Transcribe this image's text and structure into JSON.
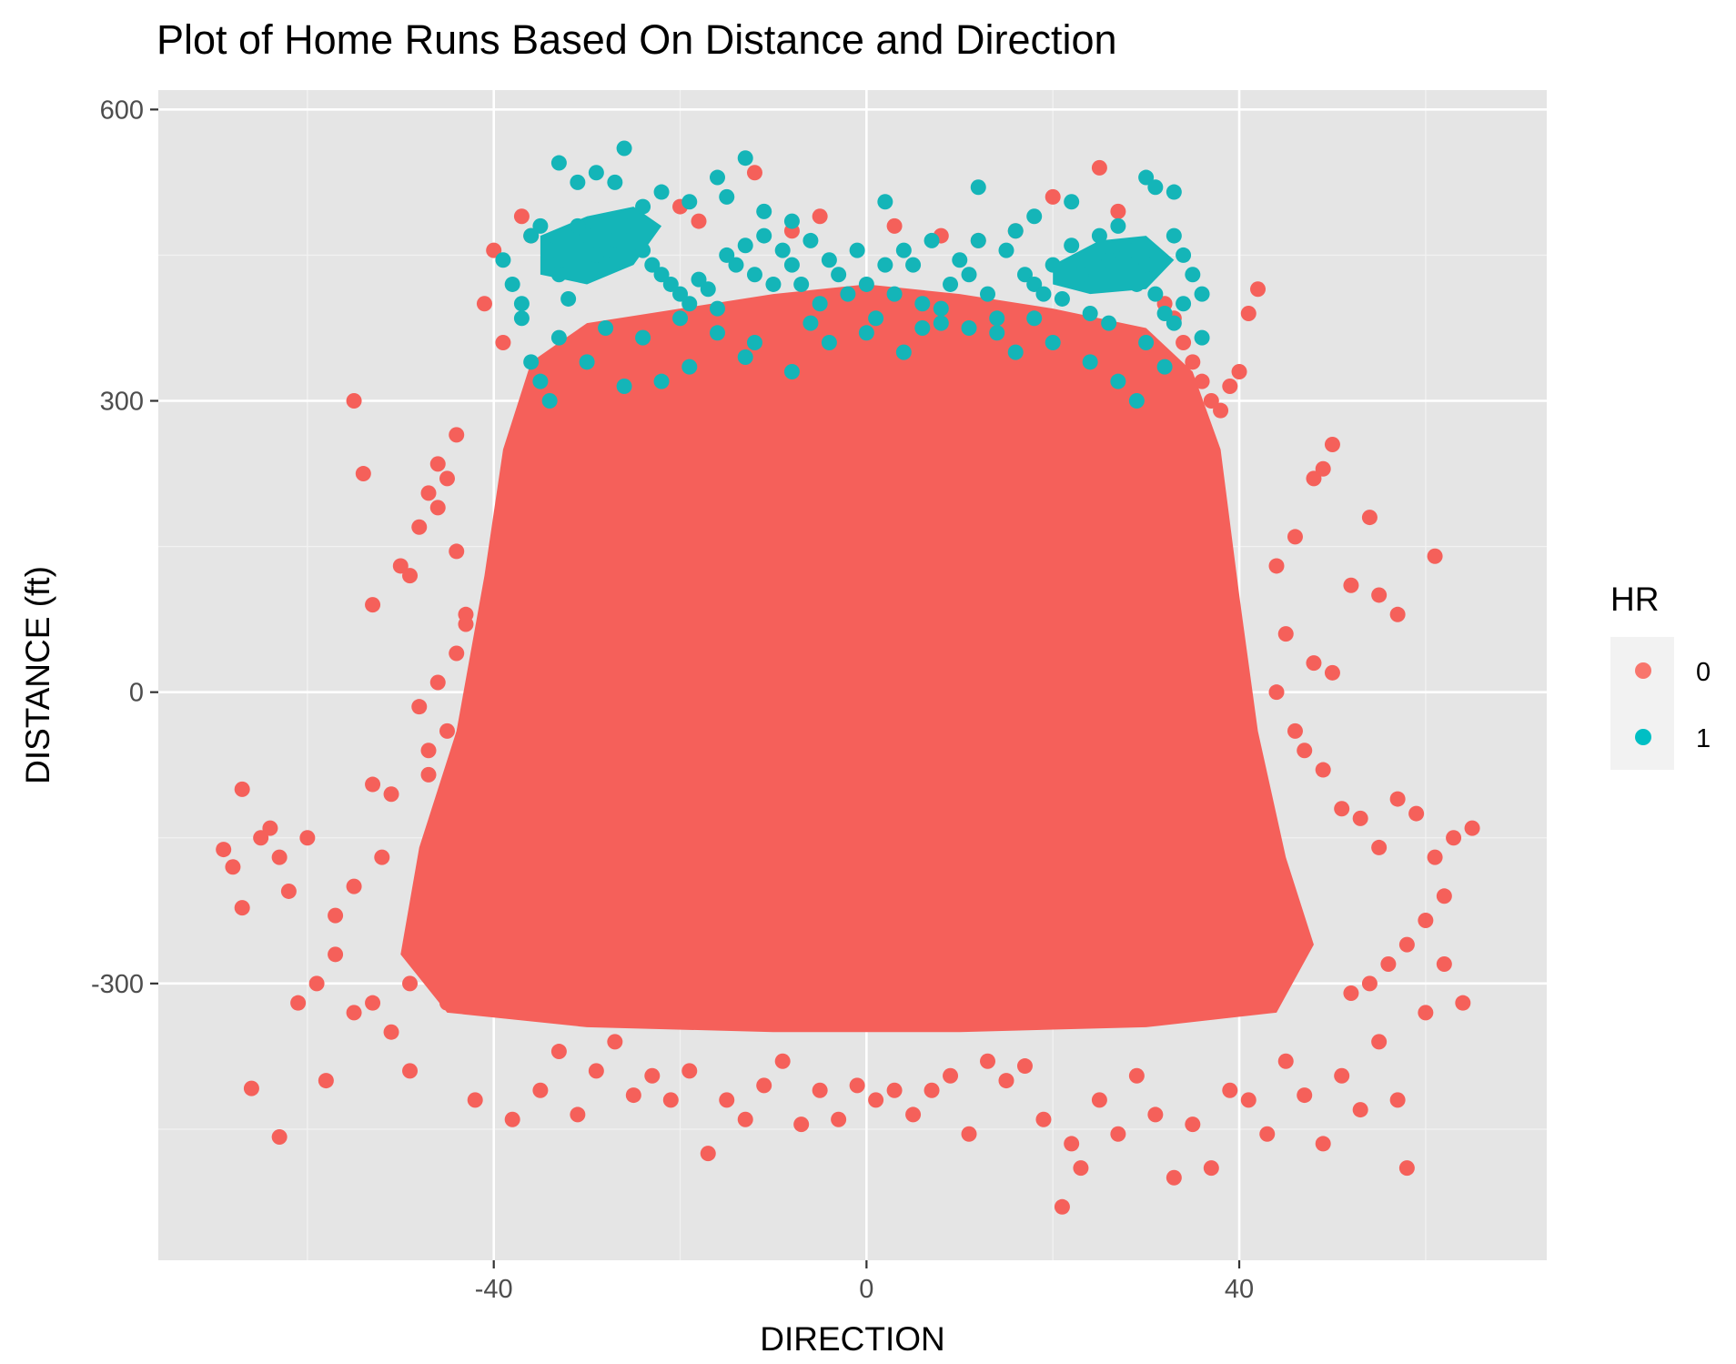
{
  "chart_data": {
    "type": "scatter",
    "title": "Plot of Home Runs Based On Distance and Direction",
    "xlabel": "DIRECTION",
    "ylabel": "DISTANCE (ft)",
    "xlim": [
      -76,
      73
    ],
    "ylim": [
      -585,
      620
    ],
    "x_ticks": [
      -40,
      0,
      40
    ],
    "x_tick_labels": [
      "-40",
      "0",
      "40"
    ],
    "y_ticks": [
      -300,
      0,
      300,
      600
    ],
    "y_tick_labels": [
      "-300",
      "0",
      "300",
      "600"
    ],
    "grid": true,
    "background": "#e5e5e5",
    "legend": {
      "title": "HR",
      "placement": "right",
      "entries": [
        {
          "label": "0",
          "color": "#f8766d"
        },
        {
          "label": "1",
          "color": "#00bfc4"
        }
      ]
    },
    "series": [
      {
        "name": "0",
        "color": "#f5605a",
        "points": [
          [
            -69,
            -162
          ],
          [
            -67,
            -222
          ],
          [
            -66,
            -408
          ],
          [
            -64,
            -140
          ],
          [
            -63,
            -458
          ],
          [
            -62,
            -205
          ],
          [
            -60,
            -150
          ],
          [
            -58,
            -400
          ],
          [
            -57,
            -270
          ],
          [
            -55,
            300
          ],
          [
            -54,
            225
          ],
          [
            -53,
            90
          ],
          [
            -52,
            -170
          ],
          [
            -50,
            130
          ],
          [
            -49,
            -390
          ],
          [
            -48,
            -15
          ],
          [
            -47,
            -85
          ],
          [
            -46,
            190
          ],
          [
            -45,
            220
          ],
          [
            -44,
            145
          ],
          [
            -43,
            80
          ],
          [
            -42,
            -420
          ],
          [
            -41,
            400
          ],
          [
            -40,
            455
          ],
          [
            -39,
            360
          ],
          [
            -38,
            -440
          ],
          [
            -37,
            490
          ],
          [
            -36,
            470
          ],
          [
            -35,
            -410
          ],
          [
            -33,
            -370
          ],
          [
            -31,
            -435
          ],
          [
            -29,
            -390
          ],
          [
            -27,
            -360
          ],
          [
            -25,
            -415
          ],
          [
            -23,
            -395
          ],
          [
            -21,
            -420
          ],
          [
            -19,
            -390
          ],
          [
            -17,
            -475
          ],
          [
            -15,
            -420
          ],
          [
            -13,
            -440
          ],
          [
            -11,
            -405
          ],
          [
            -9,
            -380
          ],
          [
            -7,
            -445
          ],
          [
            -5,
            -410
          ],
          [
            -3,
            -440
          ],
          [
            -1,
            -405
          ],
          [
            1,
            -420
          ],
          [
            3,
            -410
          ],
          [
            5,
            -435
          ],
          [
            7,
            -410
          ],
          [
            9,
            -395
          ],
          [
            11,
            -455
          ],
          [
            13,
            -380
          ],
          [
            15,
            -400
          ],
          [
            17,
            -385
          ],
          [
            19,
            -440
          ],
          [
            21,
            -530
          ],
          [
            22,
            -465
          ],
          [
            23,
            -490
          ],
          [
            25,
            -420
          ],
          [
            27,
            -455
          ],
          [
            29,
            -395
          ],
          [
            31,
            -435
          ],
          [
            33,
            -500
          ],
          [
            35,
            -445
          ],
          [
            37,
            -490
          ],
          [
            39,
            -410
          ],
          [
            41,
            -420
          ],
          [
            43,
            -455
          ],
          [
            45,
            -380
          ],
          [
            47,
            -415
          ],
          [
            49,
            -465
          ],
          [
            51,
            -395
          ],
          [
            53,
            -430
          ],
          [
            55,
            -360
          ],
          [
            57,
            -420
          ],
          [
            58,
            -490
          ],
          [
            60,
            -330
          ],
          [
            62,
            -280
          ],
          [
            64,
            -320
          ],
          [
            65,
            -140
          ],
          [
            61,
            140
          ],
          [
            57,
            80
          ],
          [
            55,
            100
          ],
          [
            54,
            180
          ],
          [
            52,
            110
          ],
          [
            50,
            255
          ],
          [
            49,
            230
          ],
          [
            48,
            220
          ],
          [
            46,
            160
          ],
          [
            44,
            130
          ],
          [
            42,
            415
          ],
          [
            41,
            390
          ],
          [
            40,
            330
          ],
          [
            39,
            315
          ],
          [
            38,
            290
          ],
          [
            37,
            300
          ],
          [
            36,
            320
          ],
          [
            35,
            340
          ],
          [
            34,
            360
          ],
          [
            33,
            385
          ],
          [
            32,
            400
          ],
          [
            -12,
            535
          ],
          [
            25,
            540
          ],
          [
            20,
            510
          ],
          [
            -5,
            490
          ],
          [
            3,
            480
          ],
          [
            8,
            470
          ],
          [
            -20,
            500
          ],
          [
            -18,
            485
          ],
          [
            -8,
            475
          ],
          [
            12,
            465
          ],
          [
            16,
            475
          ],
          [
            27,
            495
          ],
          [
            -44,
            265
          ],
          [
            -46,
            235
          ],
          [
            -47,
            205
          ],
          [
            -48,
            170
          ],
          [
            -49,
            120
          ],
          [
            -51,
            -105
          ],
          [
            -53,
            -95
          ],
          [
            -55,
            -200
          ],
          [
            -57,
            -230
          ],
          [
            -59,
            -300
          ],
          [
            -61,
            -320
          ],
          [
            -63,
            -170
          ],
          [
            -65,
            -150
          ],
          [
            -67,
            -100
          ],
          [
            -68,
            -180
          ],
          [
            47,
            -60
          ],
          [
            49,
            -80
          ],
          [
            51,
            -120
          ],
          [
            53,
            -130
          ],
          [
            55,
            -160
          ],
          [
            57,
            -110
          ],
          [
            59,
            -125
          ],
          [
            61,
            -170
          ],
          [
            63,
            -150
          ],
          [
            48,
            30
          ],
          [
            50,
            20
          ],
          [
            45,
            60
          ],
          [
            46,
            -40
          ],
          [
            44,
            0
          ],
          [
            -45,
            -40
          ],
          [
            -47,
            -60
          ],
          [
            -46,
            10
          ],
          [
            -44,
            40
          ],
          [
            -43,
            70
          ],
          [
            60,
            -235
          ],
          [
            62,
            -210
          ],
          [
            58,
            -260
          ],
          [
            56,
            -280
          ],
          [
            54,
            -300
          ],
          [
            52,
            -310
          ],
          [
            -55,
            -330
          ],
          [
            -53,
            -320
          ],
          [
            -51,
            -350
          ],
          [
            -49,
            -300
          ],
          [
            -47,
            -290
          ],
          [
            -45,
            -320
          ]
        ]
      },
      {
        "name": "1",
        "color": "#14b5b8",
        "points": [
          [
            -33,
            545
          ],
          [
            -31,
            525
          ],
          [
            -29,
            535
          ],
          [
            -27,
            525
          ],
          [
            -26,
            560
          ],
          [
            -24,
            500
          ],
          [
            -22,
            515
          ],
          [
            -19,
            505
          ],
          [
            -16,
            530
          ],
          [
            -15,
            510
          ],
          [
            -13,
            550
          ],
          [
            -11,
            495
          ],
          [
            -8,
            485
          ],
          [
            2,
            505
          ],
          [
            12,
            520
          ],
          [
            18,
            490
          ],
          [
            22,
            505
          ],
          [
            30,
            530
          ],
          [
            31,
            520
          ],
          [
            33,
            515
          ],
          [
            -39,
            445
          ],
          [
            -38,
            420
          ],
          [
            -37,
            400
          ],
          [
            -36,
            470
          ],
          [
            -35,
            480
          ],
          [
            -34,
            455
          ],
          [
            -33,
            430
          ],
          [
            -32,
            405
          ],
          [
            -31,
            480
          ],
          [
            -30,
            470
          ],
          [
            -29,
            450
          ],
          [
            -28,
            440
          ],
          [
            -27,
            465
          ],
          [
            -26,
            480
          ],
          [
            -25,
            470
          ],
          [
            -24,
            455
          ],
          [
            -23,
            440
          ],
          [
            -22,
            430
          ],
          [
            -21,
            420
          ],
          [
            -20,
            410
          ],
          [
            -19,
            400
          ],
          [
            -18,
            425
          ],
          [
            -17,
            415
          ],
          [
            -16,
            395
          ],
          [
            -15,
            450
          ],
          [
            -14,
            440
          ],
          [
            -13,
            460
          ],
          [
            -12,
            430
          ],
          [
            -11,
            470
          ],
          [
            -10,
            420
          ],
          [
            -9,
            455
          ],
          [
            -8,
            440
          ],
          [
            -7,
            420
          ],
          [
            -6,
            465
          ],
          [
            -5,
            400
          ],
          [
            -4,
            445
          ],
          [
            -3,
            430
          ],
          [
            -2,
            410
          ],
          [
            -1,
            455
          ],
          [
            0,
            420
          ],
          [
            1,
            385
          ],
          [
            2,
            440
          ],
          [
            3,
            410
          ],
          [
            4,
            455
          ],
          [
            5,
            440
          ],
          [
            6,
            400
          ],
          [
            7,
            465
          ],
          [
            8,
            395
          ],
          [
            9,
            420
          ],
          [
            10,
            445
          ],
          [
            11,
            430
          ],
          [
            12,
            465
          ],
          [
            13,
            410
          ],
          [
            14,
            385
          ],
          [
            15,
            455
          ],
          [
            16,
            475
          ],
          [
            17,
            430
          ],
          [
            18,
            420
          ],
          [
            19,
            410
          ],
          [
            20,
            440
          ],
          [
            21,
            405
          ],
          [
            22,
            460
          ],
          [
            23,
            430
          ],
          [
            24,
            390
          ],
          [
            25,
            470
          ],
          [
            26,
            445
          ],
          [
            27,
            480
          ],
          [
            28,
            455
          ],
          [
            29,
            420
          ],
          [
            30,
            440
          ],
          [
            31,
            410
          ],
          [
            32,
            390
          ],
          [
            33,
            470
          ],
          [
            34,
            450
          ],
          [
            35,
            430
          ],
          [
            36,
            410
          ],
          [
            -36,
            340
          ],
          [
            -35,
            320
          ],
          [
            -34,
            300
          ],
          [
            -30,
            340
          ],
          [
            -26,
            315
          ],
          [
            -22,
            320
          ],
          [
            -19,
            335
          ],
          [
            -13,
            345
          ],
          [
            -8,
            330
          ],
          [
            -4,
            360
          ],
          [
            0,
            370
          ],
          [
            4,
            350
          ],
          [
            8,
            380
          ],
          [
            11,
            375
          ],
          [
            16,
            350
          ],
          [
            20,
            360
          ],
          [
            24,
            340
          ],
          [
            27,
            320
          ],
          [
            29,
            300
          ],
          [
            32,
            335
          ],
          [
            -37,
            385
          ],
          [
            -33,
            365
          ],
          [
            -28,
            375
          ],
          [
            -24,
            365
          ],
          [
            -20,
            385
          ],
          [
            -16,
            370
          ],
          [
            -12,
            360
          ],
          [
            -6,
            380
          ],
          [
            6,
            375
          ],
          [
            14,
            370
          ],
          [
            18,
            385
          ],
          [
            26,
            380
          ],
          [
            30,
            360
          ],
          [
            33,
            380
          ],
          [
            34,
            400
          ],
          [
            36,
            365
          ]
        ]
      }
    ]
  }
}
